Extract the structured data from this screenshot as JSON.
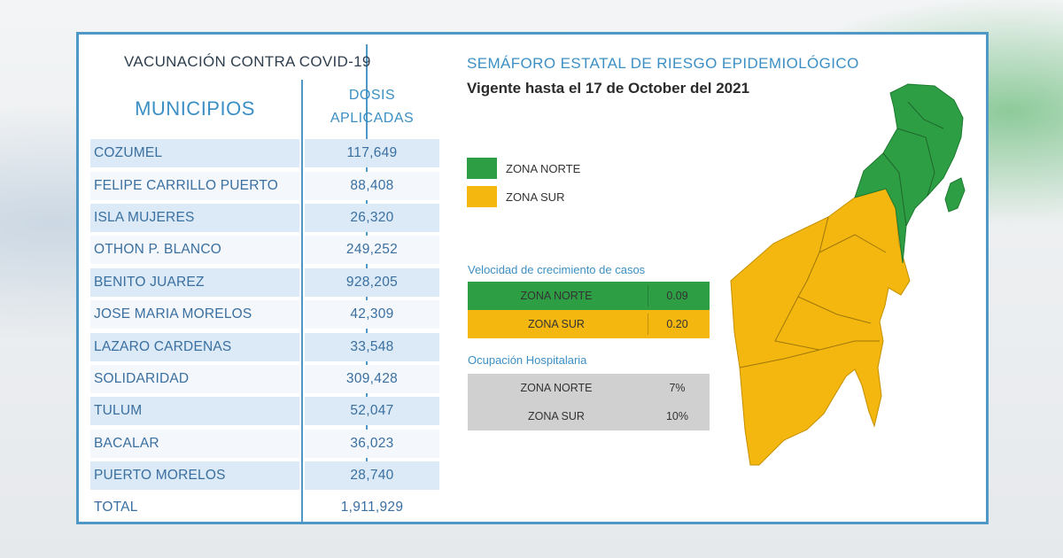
{
  "vaccination": {
    "title": "VACUNACIÓN CONTRA COVID-19",
    "col_municipios": "MUNICIPIOS",
    "col_dosis_line1": "DOSIS",
    "col_dosis_line2": "APLICADAS",
    "rows": [
      {
        "name": "COZUMEL",
        "doses": "117,649"
      },
      {
        "name": "FELIPE CARRILLO PUERTO",
        "doses": "88,408"
      },
      {
        "name": "ISLA MUJERES",
        "doses": "26,320"
      },
      {
        "name": "OTHON P. BLANCO",
        "doses": "249,252"
      },
      {
        "name": "BENITO JUAREZ",
        "doses": "928,205"
      },
      {
        "name": "JOSE MARIA MORELOS",
        "doses": "42,309"
      },
      {
        "name": "LAZARO CARDENAS",
        "doses": "33,548"
      },
      {
        "name": "SOLIDARIDAD",
        "doses": "309,428"
      },
      {
        "name": "TULUM",
        "doses": "52,047"
      },
      {
        "name": "BACALAR",
        "doses": "36,023"
      },
      {
        "name": "PUERTO MORELOS",
        "doses": "28,740"
      },
      {
        "name": "TOTAL",
        "doses": "1,911,929"
      }
    ]
  },
  "semaforo": {
    "title": "SEMÁFORO ESTATAL DE RIESGO EPIDEMIOLÓGICO",
    "subtitle": "Vigente hasta el 17 de October del 2021",
    "legend": [
      {
        "label": "ZONA NORTE",
        "color": "#2e9e44"
      },
      {
        "label": "ZONA SUR",
        "color": "#f4b70f"
      }
    ],
    "growth": {
      "title": "Velocidad de crecimiento de casos",
      "rows": [
        {
          "zone": "ZONA NORTE",
          "value": "0.09",
          "color": "#2e9e44"
        },
        {
          "zone": "ZONA SUR",
          "value": "0.20",
          "color": "#f4b70f"
        }
      ]
    },
    "hospital": {
      "title": "Ocupación Hospitalaria",
      "rows": [
        {
          "zone": "ZONA NORTE",
          "value": "7%"
        },
        {
          "zone": "ZONA SUR",
          "value": "10%"
        }
      ],
      "color": "#d0d0d0"
    }
  }
}
